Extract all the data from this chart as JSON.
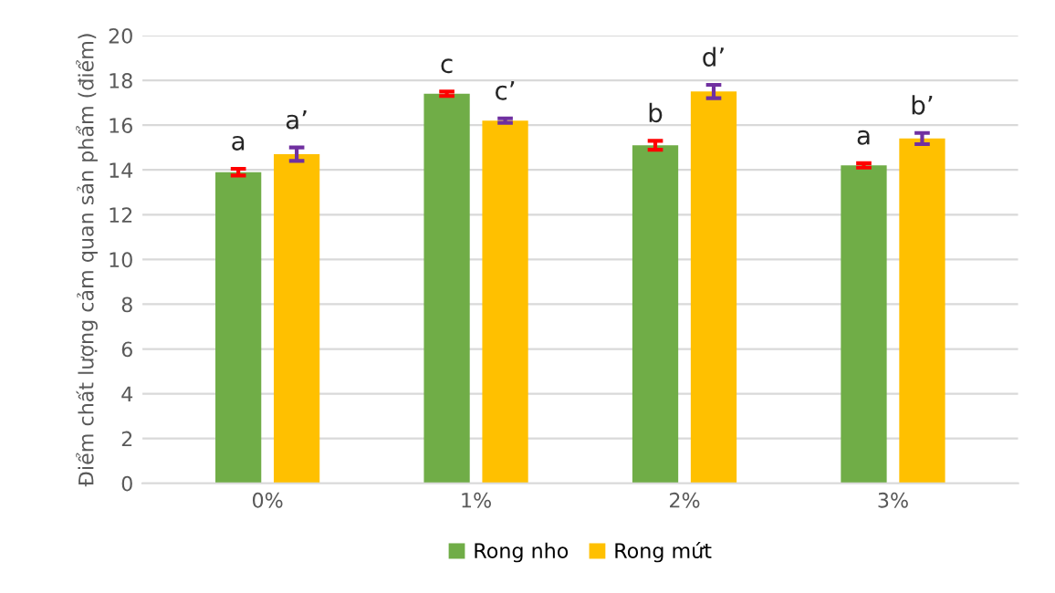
{
  "chart_data": {
    "type": "bar",
    "ylabel": "Điểm chất lượng cảm quan sản phẩm (điểm)",
    "categories": [
      "0%",
      "1%",
      "2%",
      "3%"
    ],
    "series": [
      {
        "name": "Rong nho",
        "color": "#70ad47",
        "values": [
          13.9,
          17.4,
          15.1,
          14.2
        ],
        "errors": [
          0.15,
          0.1,
          0.2,
          0.1
        ],
        "value_labels": [
          "a",
          "c",
          "b",
          "a"
        ]
      },
      {
        "name": "Rong mứt",
        "color": "#ffc000",
        "values": [
          14.7,
          16.2,
          17.5,
          15.4
        ],
        "errors": [
          0.3,
          0.1,
          0.3,
          0.25
        ],
        "value_labels": [
          "a’",
          "c’",
          "d’",
          "b’"
        ]
      }
    ],
    "ylim": [
      0,
      20
    ],
    "yticks": [
      0,
      2,
      4,
      6,
      8,
      10,
      12,
      14,
      16,
      18,
      20
    ],
    "grid": "y",
    "legend": "bottom"
  }
}
